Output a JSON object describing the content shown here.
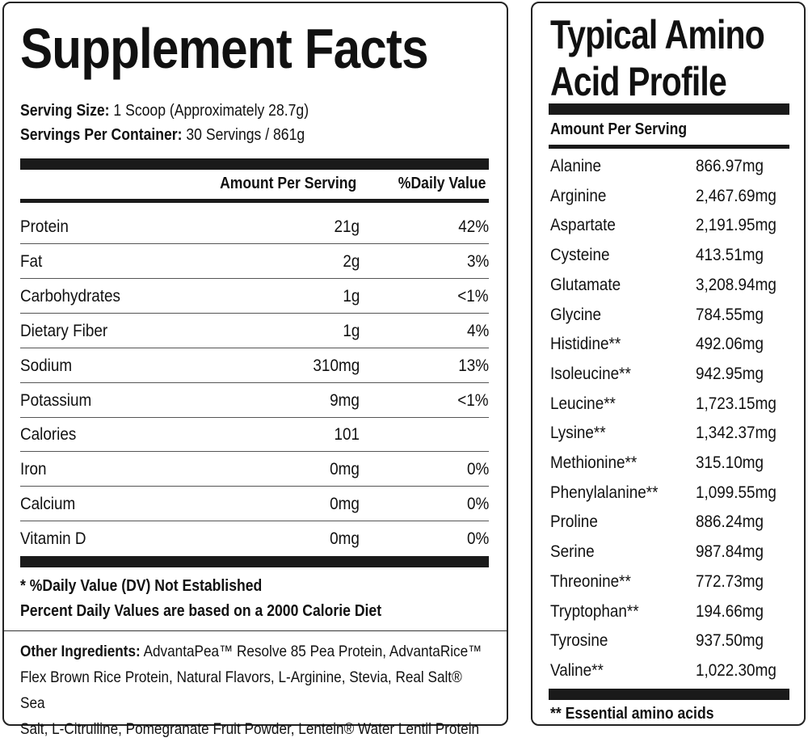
{
  "supplement": {
    "title": "Supplement Facts",
    "serving_size_label": "Serving Size:",
    "serving_size_value": "1 Scoop (Approximately 28.7g)",
    "servings_label": "Servings Per Container:",
    "servings_value": "30 Servings / 861g",
    "header_amount": "Amount Per Serving",
    "header_dv": "%Daily Value",
    "rows": [
      {
        "name": "Protein",
        "amount": "21g",
        "dv": "42%"
      },
      {
        "name": "Fat",
        "amount": "2g",
        "dv": "3%"
      },
      {
        "name": "Carbohydrates",
        "amount": "1g",
        "dv": "<1%"
      },
      {
        "name": "Dietary Fiber",
        "amount": "1g",
        "dv": "4%"
      },
      {
        "name": "Sodium",
        "amount": "310mg",
        "dv": "13%"
      },
      {
        "name": "Potassium",
        "amount": "9mg",
        "dv": "<1%"
      },
      {
        "name": "Calories",
        "amount": "101",
        "dv": ""
      },
      {
        "name": "Iron",
        "amount": "0mg",
        "dv": "0%"
      },
      {
        "name": "Calcium",
        "amount": "0mg",
        "dv": "0%"
      },
      {
        "name": "Vitamin D",
        "amount": "0mg",
        "dv": "0%"
      }
    ],
    "footnote_1": "* %Daily Value (DV) Not Established",
    "footnote_2": "Percent Daily Values are based on a 2000 Calorie Diet",
    "ingredients_label": "Other Ingredients:",
    "ingredients_line_1": " AdvantaPea™ Resolve 85 Pea Protein, AdvantaRice™",
    "ingredients_line_2": "Flex Brown Rice Protein, Natural Flavors, L-Arginine, Stevia, Real Salt® Sea",
    "ingredients_line_3": "Salt, L-Citrulline, Pomegranate Fruit Powder, Lentein® Water Lentil Protein"
  },
  "amino": {
    "title_line_1": "Typical Amino",
    "title_line_2": "Acid Profile",
    "header": "Amount Per Serving",
    "rows": [
      {
        "name": "Alanine",
        "value": "866.97mg"
      },
      {
        "name": "Arginine",
        "value": "2,467.69mg"
      },
      {
        "name": "Aspartate",
        "value": "2,191.95mg"
      },
      {
        "name": "Cysteine",
        "value": "413.51mg"
      },
      {
        "name": "Glutamate",
        "value": "3,208.94mg"
      },
      {
        "name": "Glycine",
        "value": "784.55mg"
      },
      {
        "name": "Histidine**",
        "value": "492.06mg"
      },
      {
        "name": "Isoleucine**",
        "value": "942.95mg"
      },
      {
        "name": "Leucine**",
        "value": "1,723.15mg"
      },
      {
        "name": "Lysine**",
        "value": "1,342.37mg"
      },
      {
        "name": "Methionine**",
        "value": "315.10mg"
      },
      {
        "name": "Phenylalanine**",
        "value": "1,099.55mg"
      },
      {
        "name": "Proline",
        "value": "886.24mg"
      },
      {
        "name": "Serine",
        "value": "987.84mg"
      },
      {
        "name": "Threonine**",
        "value": "772.73mg"
      },
      {
        "name": "Tryptophan**",
        "value": "194.66mg"
      },
      {
        "name": "Tyrosine",
        "value": "937.50mg"
      },
      {
        "name": "Valine**",
        "value": "1,022.30mg"
      }
    ],
    "footnote": "** Essential amino acids"
  }
}
